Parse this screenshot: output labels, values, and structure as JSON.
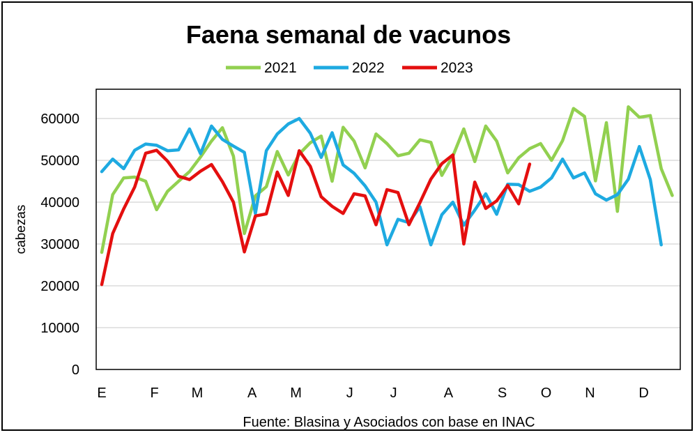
{
  "chart_data": {
    "type": "line",
    "title": "Faena semanal de vacunos",
    "ylabel": "cabezas",
    "source": "Fuente: Blasina y Asociados con base en INAC",
    "ylim": [
      0,
      67000
    ],
    "yticks": [
      0,
      10000,
      20000,
      30000,
      40000,
      50000,
      60000
    ],
    "legend": "top",
    "grid": true,
    "month_labels": [
      {
        "label": "E",
        "week": 1
      },
      {
        "label": "F",
        "week": 5.8
      },
      {
        "label": "M",
        "week": 9.7
      },
      {
        "label": "A",
        "week": 14.7
      },
      {
        "label": "M",
        "week": 18.7
      },
      {
        "label": "J",
        "week": 23.6
      },
      {
        "label": "J",
        "week": 27.6
      },
      {
        "label": "A",
        "week": 32.6
      },
      {
        "label": "S",
        "week": 37.5
      },
      {
        "label": "O",
        "week": 41.5
      },
      {
        "label": "N",
        "week": 45.5
      },
      {
        "label": "D",
        "week": 50.4
      }
    ],
    "series": [
      {
        "name": "2021",
        "color": "#92d050",
        "values": [
          28000,
          41800,
          45800,
          46000,
          45000,
          38200,
          42600,
          45000,
          47300,
          50800,
          54600,
          57800,
          51000,
          32500,
          41500,
          43700,
          52100,
          46500,
          51500,
          54200,
          55800,
          45000,
          57900,
          54600,
          48200,
          56300,
          54000,
          51100,
          51700,
          54900,
          54300,
          46400,
          51000,
          57500,
          49700,
          58200,
          54600,
          47000,
          50600,
          52800,
          54000,
          50000,
          54700,
          62400,
          60500,
          45100,
          59000,
          37800,
          62800,
          60300,
          60700,
          48000,
          41600
        ]
      },
      {
        "name": "2022",
        "color": "#1eaae1",
        "values": [
          47300,
          50300,
          48000,
          52400,
          53900,
          53600,
          52300,
          52500,
          57500,
          51600,
          58200,
          55000,
          53400,
          51900,
          37300,
          52300,
          56300,
          58700,
          60000,
          56500,
          50700,
          56600,
          48900,
          46900,
          43900,
          40000,
          29800,
          35900,
          35100,
          38900,
          29800,
          37000,
          40000,
          34500,
          38100,
          42000,
          37100,
          44300,
          44200,
          42600,
          43600,
          45800,
          50300,
          45800,
          47000,
          42000,
          40500,
          41800,
          45500,
          53300,
          45400,
          29800
        ]
      },
      {
        "name": "2023",
        "color": "#e40f0f",
        "values": [
          20300,
          32500,
          38400,
          43600,
          51700,
          52400,
          49800,
          46200,
          45400,
          47400,
          49000,
          44900,
          40000,
          28100,
          36700,
          37200,
          47200,
          41600,
          52300,
          48600,
          41300,
          39000,
          37300,
          42000,
          41500,
          34600,
          43000,
          42300,
          34600,
          39900,
          45500,
          49200,
          51300,
          30000,
          44800,
          38500,
          40300,
          44000,
          39600,
          49100
        ]
      }
    ]
  }
}
